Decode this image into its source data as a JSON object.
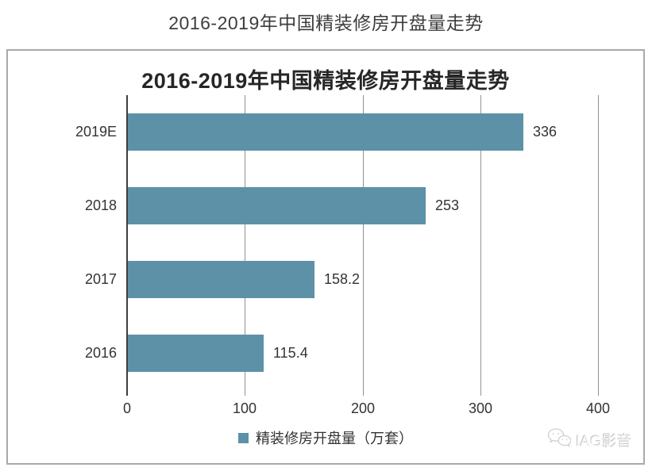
{
  "page_title": "2016-2019年中国精装修房开盘量走势",
  "chart_data": {
    "type": "bar",
    "orientation": "horizontal",
    "title": "2016-2019年中国精装修房开盘量走势",
    "categories": [
      "2019E",
      "2018",
      "2017",
      "2016"
    ],
    "series": [
      {
        "name": "精装修房开盘量（万套）",
        "values": [
          336,
          253,
          158.2,
          115.4
        ]
      }
    ],
    "value_labels": [
      "336",
      "253",
      "158.2",
      "115.4"
    ],
    "x_ticks": [
      "0",
      "100",
      "200",
      "300",
      "400"
    ],
    "xlim": [
      0,
      400
    ],
    "grid": "vertical-gridlines",
    "legend_position": "bottom-center",
    "bar_color": "#5d91a7",
    "axis_color": "#3f3f3f",
    "gridline_color": "#919191"
  },
  "legend": {
    "label": "精装修房开盘量（万套）"
  },
  "watermark": {
    "icon": "wechat-icon",
    "text": "IAG影音"
  }
}
